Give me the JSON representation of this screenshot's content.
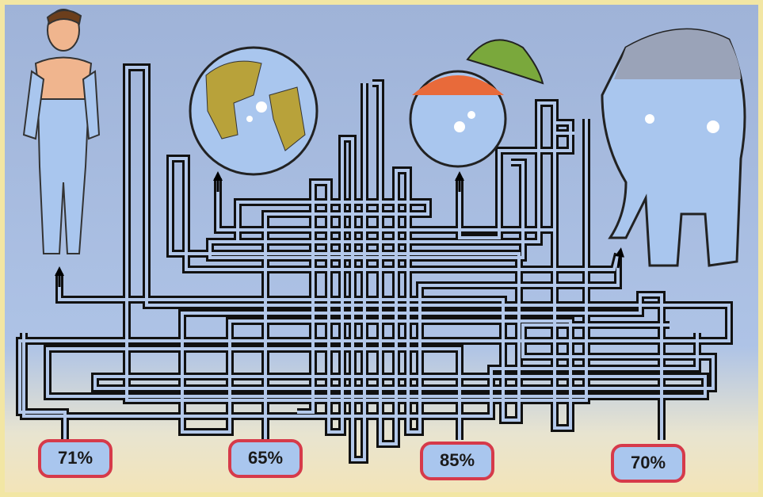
{
  "labels": [
    "71%",
    "65%",
    "85%",
    "70%"
  ]
}
